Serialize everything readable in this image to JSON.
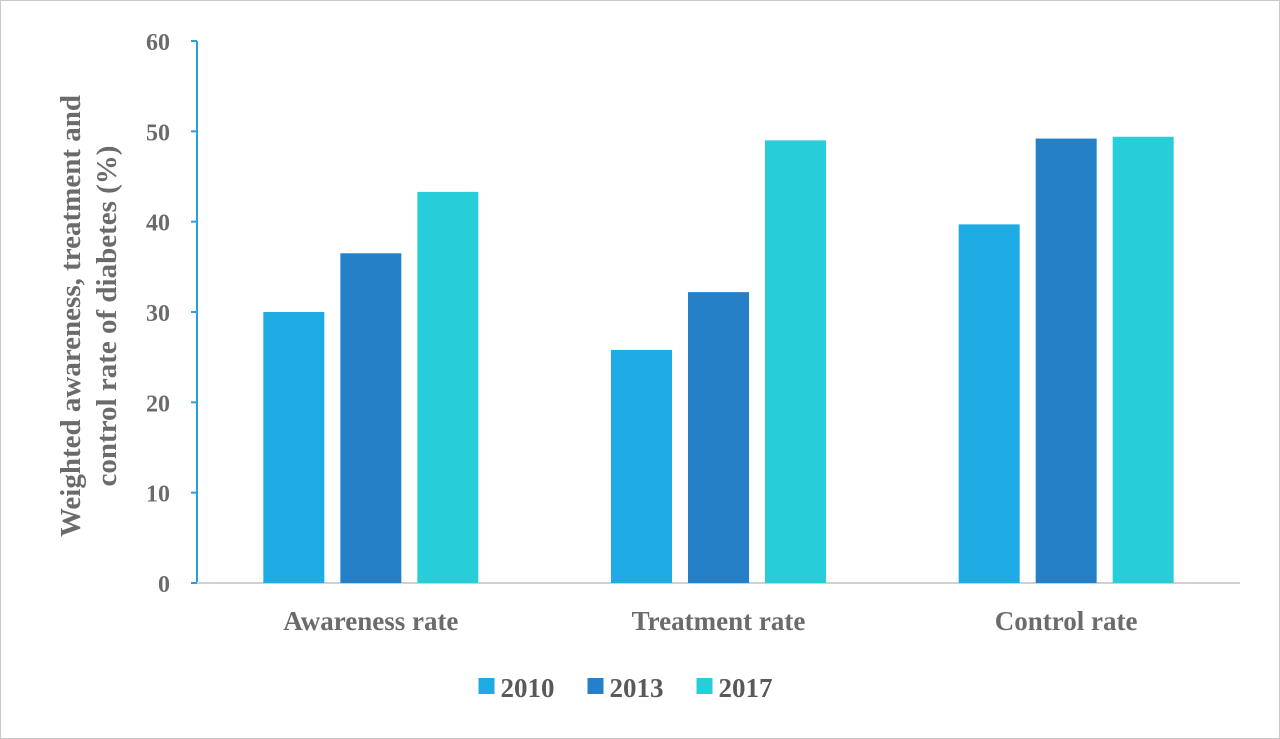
{
  "chart_data": {
    "type": "bar",
    "title": "",
    "ylabel_lines": [
      "Weighted awareness, treatment and",
      "control rate of diabetes (%)"
    ],
    "xlabel": "",
    "ylim": [
      0,
      60
    ],
    "yticks": [
      0,
      10,
      20,
      30,
      40,
      50,
      60
    ],
    "categories": [
      "Awareness rate",
      "Treatment rate",
      "Control rate"
    ],
    "series": [
      {
        "name": "2010",
        "color": "#1eabe3",
        "values": [
          30.0,
          25.8,
          39.7
        ]
      },
      {
        "name": "2013",
        "color": "#2580c8",
        "values": [
          36.5,
          32.2,
          49.2
        ]
      },
      {
        "name": "2017",
        "color": "#27cdd8",
        "values": [
          43.3,
          49.0,
          49.4
        ]
      }
    ],
    "grid": false,
    "legend_position": "bottom"
  }
}
